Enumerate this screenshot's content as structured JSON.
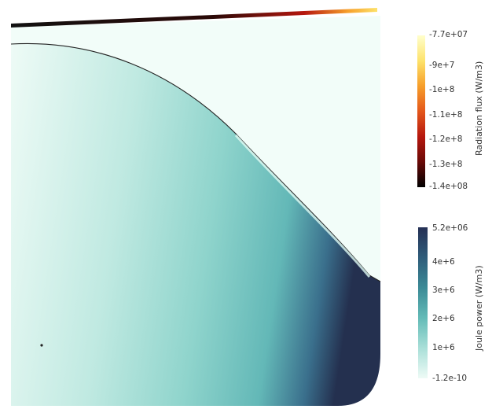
{
  "colorbars": {
    "radiation": {
      "title": "Radiation flux (W/m3)",
      "ticks": [
        "-7.7e+07",
        "-9e+7",
        "-1e+8",
        "-1.1e+8",
        "-1.2e+8",
        "-1.3e+8",
        "-1.4e+08"
      ],
      "colors": [
        "#ffffcc",
        "#fde26a",
        "#f7a02b",
        "#e4571b",
        "#b5170e",
        "#6b0a07",
        "#000000"
      ]
    },
    "joule": {
      "title": "Joule power (W/m3)",
      "ticks": [
        "5.2e+06",
        "4e+6",
        "3e+6",
        "2e+6",
        "1e+6",
        "-1.2e-10"
      ],
      "colors": [
        "#253055",
        "#2f5c7a",
        "#3b8a96",
        "#63bbb7",
        "#a9dfd8",
        "#eefbf6"
      ]
    }
  },
  "scene": {
    "background": "#ffffff",
    "field_light": "#eefbf6",
    "field_dark": "#24304f",
    "outline": "#222222"
  }
}
